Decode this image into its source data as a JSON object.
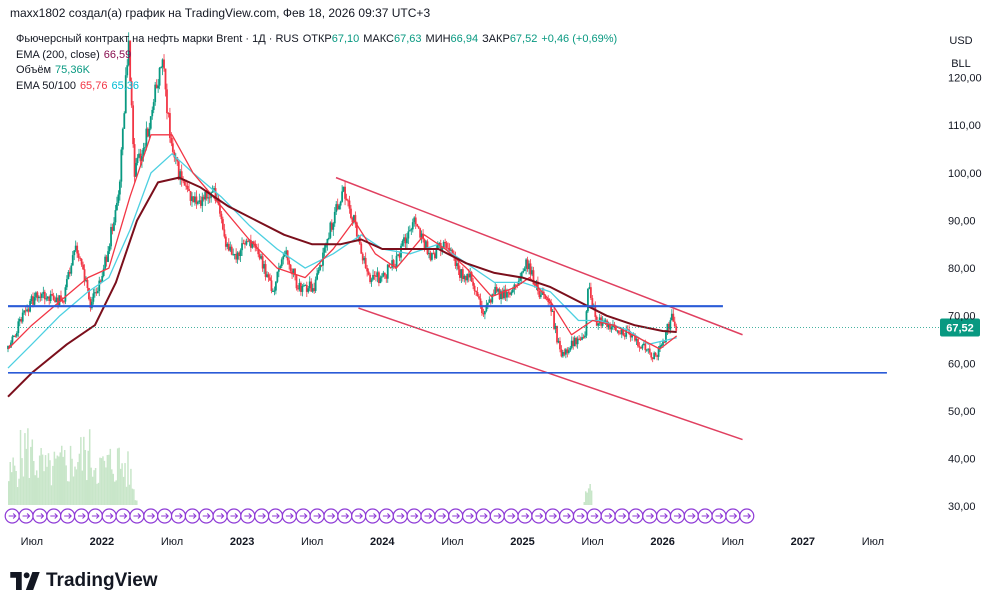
{
  "header": {
    "text": "maxx1802 создал(а) график на TradingView.com, Фев 18, 2026 09:37 UTC+3"
  },
  "legend": {
    "instrument": "Фьючерсный контракт на нефть марки Brent · 1Д · RUS",
    "open_label": "ОТКР",
    "open": "67,10",
    "high_label": "МАКС",
    "high": "67,63",
    "low_label": "МИН",
    "low": "66,94",
    "close_label": "ЗАКР",
    "close": "67,52",
    "change": "+0,46 (+0,69%)",
    "ema200_label": "EMA (200, close)",
    "ema200_value": "66,59",
    "volume_label": "Объём",
    "volume_value": "75,36K",
    "ema50_100_label": "EMA 50/100",
    "ema50_value": "65,76",
    "ema100_value": "65,36"
  },
  "units": {
    "currency": "USD",
    "unit": "BLL"
  },
  "footer": {
    "brand": "TradingView"
  },
  "colors": {
    "ema200": "#7b0f1c",
    "ema50": "#f23645",
    "ema100": "#4dd0e1",
    "up": "#089981",
    "down": "#f23645",
    "channel": "#e04060",
    "level": "#2a5bd7",
    "price_badge": "#089981",
    "event": "#8e3ad6"
  },
  "chart_data": {
    "type": "candlestick",
    "title": "Фьючерсный контракт на нефть марки Brent · 1Д",
    "ylim": [
      25,
      130
    ],
    "y_ticks": [
      {
        "v": 120,
        "label": "120,00"
      },
      {
        "v": 110,
        "label": "110,00"
      },
      {
        "v": 100,
        "label": "100,00"
      },
      {
        "v": 90,
        "label": "90,00"
      },
      {
        "v": 80,
        "label": "80,00"
      },
      {
        "v": 70,
        "label": "70,00"
      },
      {
        "v": 60,
        "label": "60,00"
      },
      {
        "v": 50,
        "label": "50,00"
      },
      {
        "v": 40,
        "label": "40,00"
      },
      {
        "v": 30,
        "label": "30,00"
      }
    ],
    "xlim": [
      2021.33,
      2027.95
    ],
    "x_ticks": [
      {
        "t": 2021.5,
        "label": "Июл",
        "bold": false
      },
      {
        "t": 2022.0,
        "label": "2022",
        "bold": true
      },
      {
        "t": 2022.5,
        "label": "Июл",
        "bold": false
      },
      {
        "t": 2023.0,
        "label": "2023",
        "bold": true
      },
      {
        "t": 2023.5,
        "label": "Июл",
        "bold": false
      },
      {
        "t": 2024.0,
        "label": "2024",
        "bold": true
      },
      {
        "t": 2024.5,
        "label": "Июл",
        "bold": false
      },
      {
        "t": 2025.0,
        "label": "2025",
        "bold": true
      },
      {
        "t": 2025.5,
        "label": "Июл",
        "bold": false
      },
      {
        "t": 2026.0,
        "label": "2026",
        "bold": true
      },
      {
        "t": 2026.5,
        "label": "Июл",
        "bold": false
      },
      {
        "t": 2027.0,
        "label": "2027",
        "bold": true
      },
      {
        "t": 2027.5,
        "label": "Июл",
        "bold": false
      }
    ],
    "price_path": [
      [
        2021.33,
        63
      ],
      [
        2021.45,
        71
      ],
      [
        2021.55,
        75
      ],
      [
        2021.72,
        73
      ],
      [
        2021.82,
        85
      ],
      [
        2021.92,
        72
      ],
      [
        2022.0,
        78
      ],
      [
        2022.12,
        95
      ],
      [
        2022.19,
        128
      ],
      [
        2022.23,
        100
      ],
      [
        2022.32,
        108
      ],
      [
        2022.43,
        124
      ],
      [
        2022.5,
        104
      ],
      [
        2022.6,
        96
      ],
      [
        2022.7,
        93
      ],
      [
        2022.8,
        97
      ],
      [
        2022.87,
        86
      ],
      [
        2022.95,
        83
      ],
      [
        2023.05,
        86
      ],
      [
        2023.15,
        81
      ],
      [
        2023.22,
        75
      ],
      [
        2023.3,
        84
      ],
      [
        2023.4,
        76
      ],
      [
        2023.52,
        76
      ],
      [
        2023.62,
        88
      ],
      [
        2023.72,
        96
      ],
      [
        2023.8,
        90
      ],
      [
        2023.9,
        78
      ],
      [
        2024.0,
        78
      ],
      [
        2024.1,
        82
      ],
      [
        2024.24,
        90
      ],
      [
        2024.35,
        82
      ],
      [
        2024.45,
        86
      ],
      [
        2024.55,
        79
      ],
      [
        2024.63,
        78
      ],
      [
        2024.72,
        70
      ],
      [
        2024.8,
        75
      ],
      [
        2024.92,
        74
      ],
      [
        2025.03,
        81
      ],
      [
        2025.1,
        76
      ],
      [
        2025.2,
        72
      ],
      [
        2025.27,
        62
      ],
      [
        2025.35,
        64
      ],
      [
        2025.45,
        67
      ],
      [
        2025.47,
        78
      ],
      [
        2025.52,
        69
      ],
      [
        2025.6,
        68
      ],
      [
        2025.7,
        67
      ],
      [
        2025.8,
        65
      ],
      [
        2025.88,
        63
      ],
      [
        2025.95,
        61
      ],
      [
        2026.02,
        66
      ],
      [
        2026.07,
        70
      ],
      [
        2026.1,
        67.52
      ]
    ],
    "ema200_path": [
      [
        2021.33,
        53
      ],
      [
        2021.5,
        58
      ],
      [
        2021.75,
        64
      ],
      [
        2021.95,
        68
      ],
      [
        2022.1,
        77
      ],
      [
        2022.25,
        90
      ],
      [
        2022.4,
        98
      ],
      [
        2022.55,
        99
      ],
      [
        2022.7,
        97
      ],
      [
        2022.9,
        93
      ],
      [
        2023.1,
        90
      ],
      [
        2023.3,
        87
      ],
      [
        2023.5,
        85
      ],
      [
        2023.7,
        85
      ],
      [
        2023.85,
        86
      ],
      [
        2024.0,
        84
      ],
      [
        2024.2,
        84
      ],
      [
        2024.4,
        84
      ],
      [
        2024.6,
        81
      ],
      [
        2024.8,
        79
      ],
      [
        2025.0,
        78
      ],
      [
        2025.2,
        76
      ],
      [
        2025.4,
        73
      ],
      [
        2025.6,
        70
      ],
      [
        2025.8,
        68
      ],
      [
        2026.0,
        66.8
      ],
      [
        2026.1,
        66.59
      ]
    ],
    "ema50_path": [
      [
        2021.33,
        63
      ],
      [
        2021.5,
        68
      ],
      [
        2021.7,
        73
      ],
      [
        2021.9,
        78
      ],
      [
        2022.05,
        80
      ],
      [
        2022.2,
        95
      ],
      [
        2022.35,
        108
      ],
      [
        2022.5,
        108
      ],
      [
        2022.65,
        100
      ],
      [
        2022.85,
        93
      ],
      [
        2023.05,
        86
      ],
      [
        2023.25,
        80
      ],
      [
        2023.45,
        78
      ],
      [
        2023.65,
        84
      ],
      [
        2023.8,
        90
      ],
      [
        2023.95,
        83
      ],
      [
        2024.1,
        80
      ],
      [
        2024.3,
        87
      ],
      [
        2024.45,
        84
      ],
      [
        2024.6,
        80
      ],
      [
        2024.78,
        74
      ],
      [
        2024.95,
        76
      ],
      [
        2025.05,
        78
      ],
      [
        2025.2,
        73
      ],
      [
        2025.35,
        66
      ],
      [
        2025.5,
        69
      ],
      [
        2025.65,
        68
      ],
      [
        2025.85,
        65
      ],
      [
        2025.98,
        63
      ],
      [
        2026.1,
        65.76
      ]
    ],
    "ema100_path": [
      [
        2021.33,
        59
      ],
      [
        2021.5,
        64
      ],
      [
        2021.7,
        70
      ],
      [
        2021.9,
        75
      ],
      [
        2022.05,
        78
      ],
      [
        2022.2,
        88
      ],
      [
        2022.35,
        100
      ],
      [
        2022.5,
        104
      ],
      [
        2022.65,
        100
      ],
      [
        2022.85,
        95
      ],
      [
        2023.05,
        89
      ],
      [
        2023.25,
        84
      ],
      [
        2023.45,
        80
      ],
      [
        2023.65,
        83
      ],
      [
        2023.85,
        87
      ],
      [
        2024.0,
        84
      ],
      [
        2024.2,
        83
      ],
      [
        2024.4,
        85
      ],
      [
        2024.6,
        81
      ],
      [
        2024.8,
        77
      ],
      [
        2025.0,
        77
      ],
      [
        2025.2,
        75
      ],
      [
        2025.4,
        69
      ],
      [
        2025.55,
        69
      ],
      [
        2025.75,
        67
      ],
      [
        2025.9,
        64
      ],
      [
        2026.1,
        65.36
      ]
    ],
    "volume_profile": [
      [
        2021.33,
        0.45
      ],
      [
        2021.45,
        0.95
      ],
      [
        2021.6,
        0.55
      ],
      [
        2021.75,
        0.7
      ],
      [
        2021.9,
        0.85
      ],
      [
        2022.0,
        0.6
      ],
      [
        2022.1,
        0.75
      ],
      [
        2022.19,
        0.55
      ],
      [
        2022.25,
        0.0
      ],
      [
        2025.43,
        0.0
      ],
      [
        2025.47,
        0.45
      ],
      [
        2025.5,
        0.0
      ]
    ],
    "channel_upper": {
      "start": [
        2023.67,
        99
      ],
      "end": [
        2026.57,
        66
      ]
    },
    "channel_lower": {
      "start": [
        2023.83,
        71.6
      ],
      "end": [
        2026.57,
        44
      ]
    },
    "support_level": {
      "value": 72,
      "from": 2021.33,
      "to": 2026.43
    },
    "lower_level": {
      "value": 58,
      "from": 2021.33,
      "to": 2027.6
    },
    "current_price": {
      "value": 67.52,
      "label": "67,52"
    },
    "events_row": {
      "start": 2021.36,
      "end": 2026.6,
      "count": 54
    }
  }
}
